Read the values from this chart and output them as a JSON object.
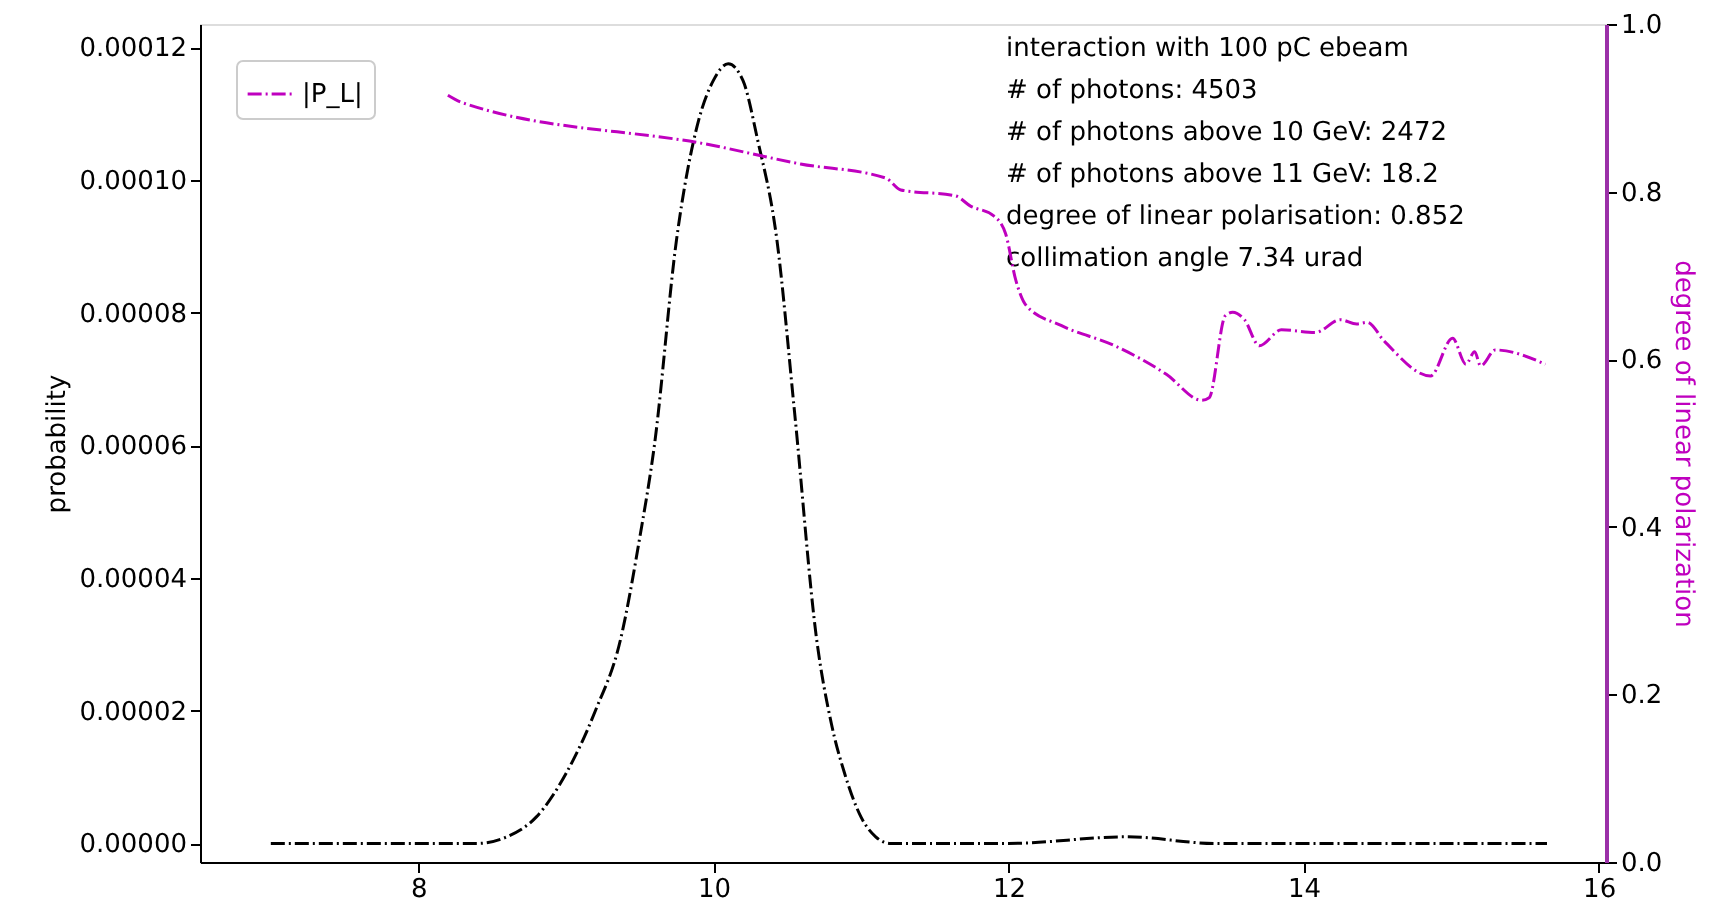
{
  "chart_data": {
    "type": "line",
    "ylabel": "probability",
    "y2label": "degree of linear polarization",
    "xlim": [
      6.52,
      16.05
    ],
    "xticks": [
      8,
      10,
      12,
      14,
      16
    ],
    "ylim": [
      -2.8e-06,
      0.0001235
    ],
    "yticks": [
      {
        "value": 0,
        "label": "0.00000"
      },
      {
        "value": 2e-05,
        "label": "0.00002"
      },
      {
        "value": 4e-05,
        "label": "0.00004"
      },
      {
        "value": 6e-05,
        "label": "0.00006"
      },
      {
        "value": 8e-05,
        "label": "0.00008"
      },
      {
        "value": 0.0001,
        "label": "0.00010"
      },
      {
        "value": 0.00012,
        "label": "0.00012"
      }
    ],
    "y2lim": [
      0,
      1
    ],
    "y2ticks": [
      {
        "value": 0,
        "label": "0.0"
      },
      {
        "value": 0.2,
        "label": "0.2"
      },
      {
        "value": 0.4,
        "label": "0.4"
      },
      {
        "value": 0.6,
        "label": "0.6"
      },
      {
        "value": 0.8,
        "label": "0.8"
      },
      {
        "value": 1,
        "label": "1.0"
      }
    ],
    "grid": false,
    "legend": "top left",
    "marker": "none",
    "line_style": "dashdot",
    "annotations": [
      "interaction with 100 pC ebeam",
      "# of photons: 4503",
      "# of photons above 10 GeV: 2472",
      "# of photons above 11 GeV: 18.2",
      "degree of linear polarisation: 0.852",
      "collimation angle 7.34 urad"
    ],
    "series": [
      {
        "color": "#000000",
        "x": [
          7.0,
          8.0,
          8.4,
          8.6,
          8.8,
          9.0,
          9.2,
          9.37,
          9.5,
          9.6,
          9.75,
          9.9,
          10.0,
          10.1,
          10.2,
          10.3,
          10.43,
          10.55,
          10.7,
          10.8,
          10.89,
          11.0,
          11.1,
          11.2,
          11.4,
          12.0,
          12.8,
          13.4,
          15.65
        ],
        "values": [
          0,
          0,
          0,
          1e-06,
          4e-06,
          1.05e-05,
          2e-05,
          3.07e-05,
          4.6e-05,
          6e-05,
          9.1e-05,
          0.000109,
          0.000115,
          0.0001175,
          0.000115,
          0.000106,
          9.1e-05,
          6.5e-05,
          3.07e-05,
          1.8e-05,
          1.05e-05,
          4e-06,
          1e-06,
          0,
          0,
          0,
          1e-06,
          0,
          0
        ]
      },
      {
        "name": "|P_L|",
        "color": "#bf00bf",
        "axis": "y2",
        "x": [
          8.2,
          8.3,
          10.0,
          10.59,
          11.17,
          11.27,
          11.64,
          11.74,
          11.9,
          11.98,
          12.05,
          12.12,
          12.36,
          12.72,
          13.07,
          13.31,
          13.36,
          13.47,
          13.52,
          13.6,
          13.7,
          13.85,
          14.08,
          14.25,
          14.36,
          14.43,
          14.55,
          14.86,
          15.01,
          15.1,
          15.16,
          15.2,
          15.3,
          15.64
        ],
        "values": [
          0.915,
          0.906,
          0.855,
          0.833,
          0.816,
          0.802,
          0.795,
          0.783,
          0.771,
          0.75,
          0.694,
          0.664,
          0.64,
          0.616,
          0.582,
          0.551,
          0.554,
          0.652,
          0.656,
          0.647,
          0.616,
          0.635,
          0.632,
          0.647,
          0.642,
          0.644,
          0.621,
          0.58,
          0.625,
          0.594,
          0.609,
          0.592,
          0.611,
          0.594
        ]
      }
    ]
  }
}
